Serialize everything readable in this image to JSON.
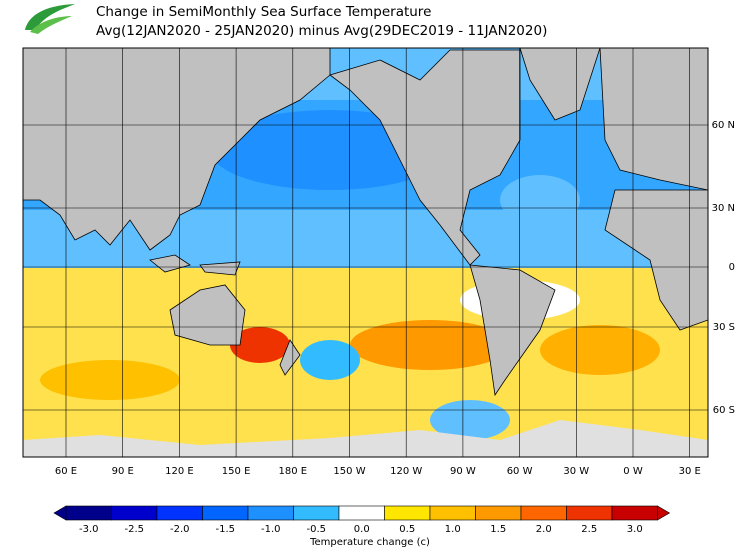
{
  "header": {
    "title": "Change in SemiMonthly Sea Surface Temperature",
    "subtitle": "Avg(12JAN2020 - 25JAN2020) minus Avg(29DEC2019 - 11JAN2020)"
  },
  "map": {
    "lon_labels": [
      "60 E",
      "90 E",
      "120 E",
      "150 E",
      "180 E",
      "150 W",
      "120 W",
      "90 W",
      "60 W",
      "30 W",
      "0 W",
      "30 E"
    ],
    "lat_labels": [
      "60 N",
      "30 N",
      "0",
      "30 S",
      "60 S"
    ]
  },
  "colorbar": {
    "label": "Temperature change  (c)",
    "ticks": [
      {
        "value": -3,
        "label": "-3.0"
      },
      {
        "value": -2.5,
        "label": "-2.5"
      },
      {
        "value": -2,
        "label": "-2.0"
      },
      {
        "value": -1.5,
        "label": "-1.5"
      },
      {
        "value": -1,
        "label": "-1.0"
      },
      {
        "value": -0.5,
        "label": "-0.5"
      },
      {
        "value": 0,
        "label": "0.0"
      },
      {
        "value": 0.5,
        "label": "0.5"
      },
      {
        "value": 1,
        "label": "1.0"
      },
      {
        "value": 1.5,
        "label": "1.5"
      },
      {
        "value": 2,
        "label": "2.0"
      },
      {
        "value": 2.5,
        "label": "2.5"
      },
      {
        "value": 3,
        "label": "3.0"
      }
    ],
    "colors": [
      "#00008b",
      "#0000cd",
      "#0033ff",
      "#0066ff",
      "#1e90ff",
      "#33bbff",
      "#ffffff",
      "#ffe600",
      "#ffc000",
      "#ff9900",
      "#ff6600",
      "#ee3300",
      "#c80000"
    ]
  }
}
